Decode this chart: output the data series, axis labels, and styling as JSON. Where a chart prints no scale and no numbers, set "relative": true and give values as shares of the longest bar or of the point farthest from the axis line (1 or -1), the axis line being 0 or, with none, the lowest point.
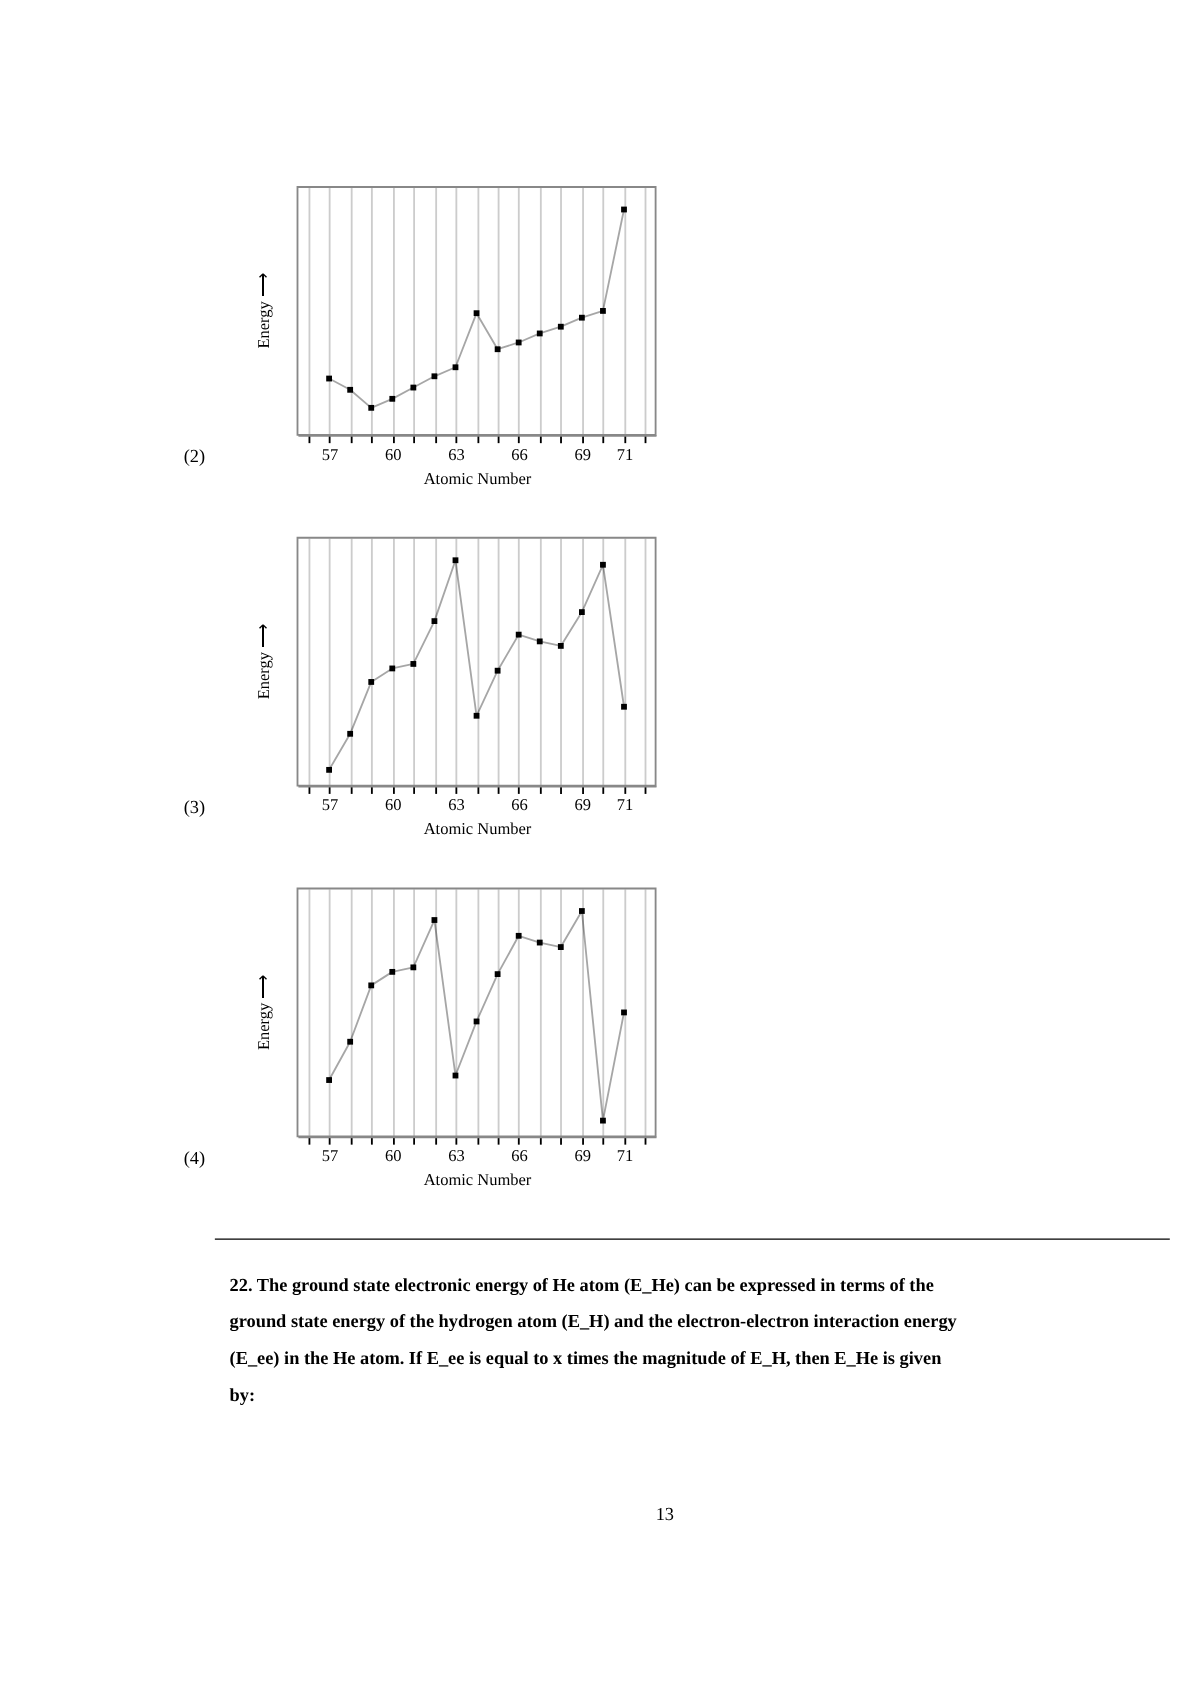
{
  "chart_data": [
    {
      "type": "line",
      "relative": true,
      "marker": "square",
      "grid": "x",
      "xlabel": "Atomic Number",
      "ylabel": "Energy ⟶",
      "annotations": [
        "(2)"
      ],
      "xlim": [
        55.5,
        72.5
      ],
      "xticks": [
        {
          "value": 56,
          "label": null
        },
        57,
        {
          "value": 58,
          "label": null
        },
        {
          "value": 59,
          "label": null
        },
        60,
        {
          "value": 61,
          "label": null
        },
        {
          "value": 62,
          "label": null
        },
        63,
        {
          "value": 64,
          "label": null
        },
        {
          "value": 65,
          "label": null
        },
        66,
        {
          "value": 67,
          "label": null
        },
        {
          "value": 68,
          "label": null
        },
        69,
        {
          "value": 70,
          "label": null
        },
        71,
        {
          "value": 72,
          "label": null
        }
      ],
      "x": [
        57,
        58,
        59,
        60,
        61,
        62,
        63,
        64,
        65,
        66,
        67,
        68,
        69,
        70,
        71
      ],
      "series": [
        {
          "color": "#000000",
          "values": [
            0.25,
            0.2,
            0.12,
            0.16,
            0.21,
            0.26,
            0.3,
            0.54,
            0.38,
            0.41,
            0.45,
            0.48,
            0.52,
            0.55,
            1
          ]
        }
      ]
    },
    {
      "type": "line",
      "relative": true,
      "marker": "square",
      "grid": "x",
      "xlabel": "Atomic Number",
      "ylabel": "Energy ⟶",
      "annotations": [
        "(3)"
      ],
      "xlim": [
        55.5,
        72.5
      ],
      "xticks": [
        {
          "value": 56,
          "label": null
        },
        57,
        {
          "value": 58,
          "label": null
        },
        {
          "value": 59,
          "label": null
        },
        60,
        {
          "value": 61,
          "label": null
        },
        {
          "value": 62,
          "label": null
        },
        63,
        {
          "value": 64,
          "label": null
        },
        {
          "value": 65,
          "label": null
        },
        66,
        {
          "value": 67,
          "label": null
        },
        {
          "value": 68,
          "label": null
        },
        69,
        {
          "value": 70,
          "label": null
        },
        71,
        {
          "value": 72,
          "label": null
        }
      ],
      "x": [
        57,
        58,
        59,
        60,
        61,
        62,
        63,
        64,
        65,
        66,
        67,
        68,
        69,
        70,
        71
      ],
      "series": [
        {
          "color": "#000000",
          "values": [
            0.07,
            0.23,
            0.46,
            0.52,
            0.54,
            0.73,
            1,
            0.31,
            0.51,
            0.67,
            0.64,
            0.62,
            0.77,
            0.98,
            0.35
          ]
        }
      ]
    },
    {
      "type": "line",
      "relative": true,
      "marker": "square",
      "grid": "x",
      "xlabel": "Atomic Number",
      "ylabel": "Energy ⟶",
      "annotations": [
        "(4)"
      ],
      "xlim": [
        55.5,
        72.5
      ],
      "xticks": [
        {
          "value": 56,
          "label": null
        },
        57,
        {
          "value": 58,
          "label": null
        },
        {
          "value": 59,
          "label": null
        },
        60,
        {
          "value": 61,
          "label": null
        },
        {
          "value": 62,
          "label": null
        },
        63,
        {
          "value": 64,
          "label": null
        },
        {
          "value": 65,
          "label": null
        },
        66,
        {
          "value": 67,
          "label": null
        },
        {
          "value": 68,
          "label": null
        },
        69,
        {
          "value": 70,
          "label": null
        },
        71,
        {
          "value": 72,
          "label": null
        }
      ],
      "x": [
        57,
        58,
        59,
        60,
        61,
        62,
        63,
        64,
        65,
        66,
        67,
        68,
        69,
        70,
        71
      ],
      "series": [
        {
          "color": "#000000",
          "values": [
            0.25,
            0.42,
            0.67,
            0.73,
            0.75,
            0.96,
            0.27,
            0.51,
            0.72,
            0.89,
            0.86,
            0.84,
            1,
            0.07,
            0.55
          ]
        }
      ]
    },
    {
      "type": "other",
      "annotations": [
        "22. The ground state electronic energy of He atom (E_He) can be expressed in terms of the ground state energy of the hydrogen atom (E_H) and the electron-electron interaction energy (E_ee) in the He atom. If E_ee is equal to x times the magnitude of E_H, then E_He is given by:",
        "13"
      ]
    }
  ]
}
